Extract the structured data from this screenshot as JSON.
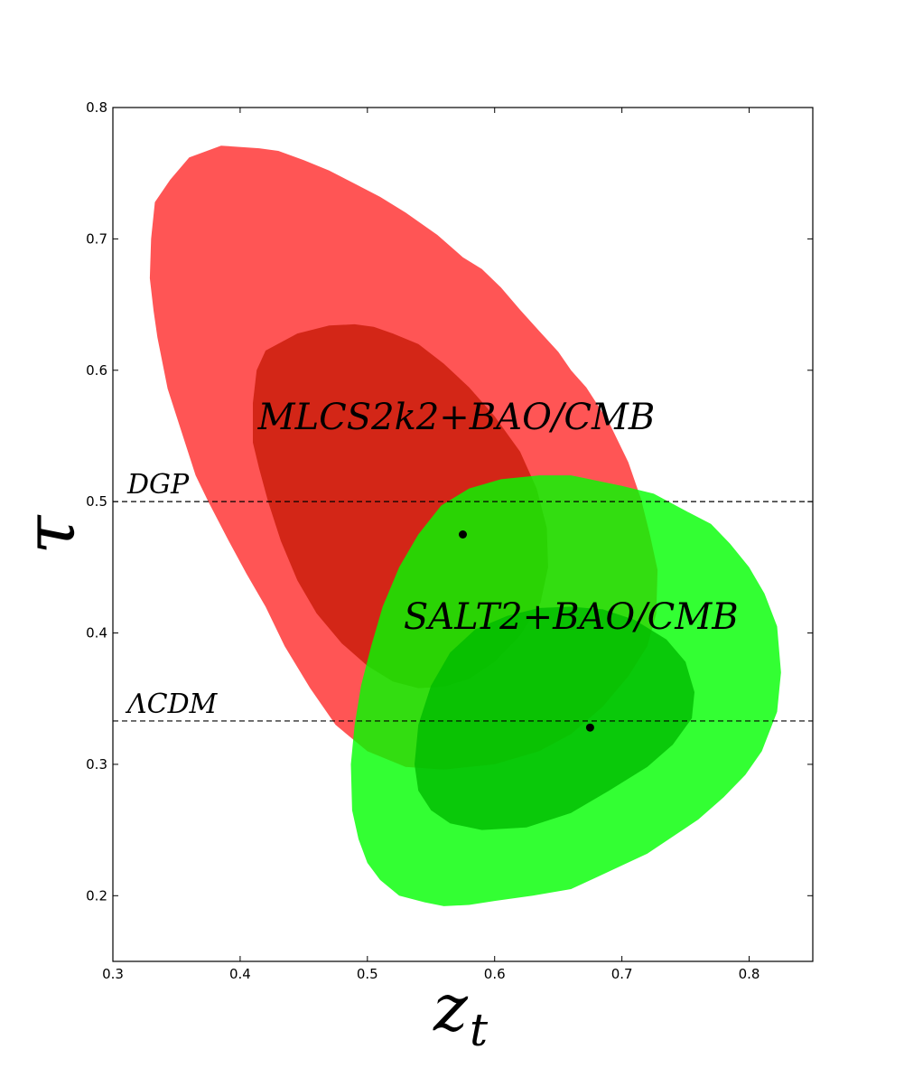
{
  "chart_data": {
    "type": "contour",
    "xlabel": "z",
    "xlabel_sub": "t",
    "ylabel": "τ",
    "xlim": [
      0.3,
      0.85
    ],
    "ylim": [
      0.15,
      0.8
    ],
    "x_ticks": [
      "0.3",
      "0.4",
      "0.5",
      "0.6",
      "0.7",
      "0.8"
    ],
    "y_ticks": [
      "0.2",
      "0.3",
      "0.4",
      "0.5",
      "0.6",
      "0.7",
      "0.8"
    ],
    "grid": false,
    "reference_lines": [
      {
        "label": "DGP",
        "y": 0.5,
        "style": "dashed"
      },
      {
        "label": "ΛCDM",
        "y": 0.333,
        "style": "dashed"
      }
    ],
    "series": [
      {
        "name": "MLCS2k2+BAO/CMB",
        "best_fit": {
          "x": 0.575,
          "y": 0.475
        },
        "label_pos": {
          "x": 0.57,
          "y": 0.555
        },
        "colors": {
          "outer": "#ff2a2a",
          "inner": "#c81a08"
        },
        "contour_outer": [
          [
            0.385,
            0.771
          ],
          [
            0.415,
            0.769
          ],
          [
            0.43,
            0.767
          ],
          [
            0.45,
            0.76
          ],
          [
            0.47,
            0.752
          ],
          [
            0.49,
            0.742
          ],
          [
            0.51,
            0.732
          ],
          [
            0.53,
            0.72
          ],
          [
            0.555,
            0.703
          ],
          [
            0.575,
            0.686
          ],
          [
            0.59,
            0.677
          ],
          [
            0.605,
            0.663
          ],
          [
            0.62,
            0.646
          ],
          [
            0.635,
            0.63
          ],
          [
            0.65,
            0.614
          ],
          [
            0.66,
            0.6
          ],
          [
            0.672,
            0.587
          ],
          [
            0.69,
            0.56
          ],
          [
            0.705,
            0.53
          ],
          [
            0.715,
            0.502
          ],
          [
            0.722,
            0.475
          ],
          [
            0.728,
            0.448
          ],
          [
            0.727,
            0.415
          ],
          [
            0.72,
            0.39
          ],
          [
            0.705,
            0.367
          ],
          [
            0.685,
            0.344
          ],
          [
            0.66,
            0.323
          ],
          [
            0.635,
            0.31
          ],
          [
            0.6,
            0.3
          ],
          [
            0.56,
            0.296
          ],
          [
            0.53,
            0.298
          ],
          [
            0.5,
            0.31
          ],
          [
            0.475,
            0.33
          ],
          [
            0.455,
            0.358
          ],
          [
            0.435,
            0.39
          ],
          [
            0.42,
            0.42
          ],
          [
            0.405,
            0.445
          ],
          [
            0.39,
            0.472
          ],
          [
            0.375,
            0.5
          ],
          [
            0.365,
            0.52
          ],
          [
            0.355,
            0.55
          ],
          [
            0.343,
            0.586
          ],
          [
            0.335,
            0.625
          ],
          [
            0.332,
            0.645
          ],
          [
            0.329,
            0.67
          ],
          [
            0.33,
            0.7
          ],
          [
            0.333,
            0.728
          ],
          [
            0.345,
            0.745
          ],
          [
            0.36,
            0.762
          ]
        ],
        "contour_inner": [
          [
            0.49,
            0.635
          ],
          [
            0.505,
            0.633
          ],
          [
            0.52,
            0.628
          ],
          [
            0.54,
            0.62
          ],
          [
            0.56,
            0.605
          ],
          [
            0.58,
            0.587
          ],
          [
            0.6,
            0.565
          ],
          [
            0.62,
            0.538
          ],
          [
            0.633,
            0.51
          ],
          [
            0.641,
            0.48
          ],
          [
            0.642,
            0.45
          ],
          [
            0.636,
            0.423
          ],
          [
            0.62,
            0.398
          ],
          [
            0.6,
            0.378
          ],
          [
            0.58,
            0.365
          ],
          [
            0.56,
            0.359
          ],
          [
            0.54,
            0.358
          ],
          [
            0.52,
            0.363
          ],
          [
            0.5,
            0.375
          ],
          [
            0.48,
            0.392
          ],
          [
            0.46,
            0.415
          ],
          [
            0.445,
            0.44
          ],
          [
            0.432,
            0.47
          ],
          [
            0.422,
            0.5
          ],
          [
            0.415,
            0.525
          ],
          [
            0.41,
            0.545
          ],
          [
            0.41,
            0.575
          ],
          [
            0.413,
            0.6
          ],
          [
            0.42,
            0.615
          ],
          [
            0.445,
            0.628
          ],
          [
            0.47,
            0.634
          ]
        ]
      },
      {
        "name": "SALT2+BAO/CMB",
        "best_fit": {
          "x": 0.675,
          "y": 0.328
        },
        "label_pos": {
          "x": 0.66,
          "y": 0.403
        },
        "colors": {
          "outer": "#00ff00",
          "inner": "#00bb00"
        },
        "contour_outer": [
          [
            0.66,
            0.52
          ],
          [
            0.7,
            0.512
          ],
          [
            0.725,
            0.506
          ],
          [
            0.75,
            0.493
          ],
          [
            0.77,
            0.483
          ],
          [
            0.785,
            0.468
          ],
          [
            0.8,
            0.45
          ],
          [
            0.812,
            0.43
          ],
          [
            0.822,
            0.405
          ],
          [
            0.825,
            0.37
          ],
          [
            0.822,
            0.34
          ],
          [
            0.81,
            0.31
          ],
          [
            0.797,
            0.292
          ],
          [
            0.78,
            0.275
          ],
          [
            0.76,
            0.258
          ],
          [
            0.74,
            0.245
          ],
          [
            0.72,
            0.232
          ],
          [
            0.7,
            0.223
          ],
          [
            0.68,
            0.214
          ],
          [
            0.66,
            0.205
          ],
          [
            0.63,
            0.2
          ],
          [
            0.6,
            0.196
          ],
          [
            0.58,
            0.193
          ],
          [
            0.56,
            0.192
          ],
          [
            0.545,
            0.195
          ],
          [
            0.525,
            0.2
          ],
          [
            0.51,
            0.212
          ],
          [
            0.5,
            0.225
          ],
          [
            0.493,
            0.243
          ],
          [
            0.488,
            0.265
          ],
          [
            0.487,
            0.3
          ],
          [
            0.49,
            0.33
          ],
          [
            0.495,
            0.36
          ],
          [
            0.503,
            0.39
          ],
          [
            0.512,
            0.42
          ],
          [
            0.525,
            0.45
          ],
          [
            0.54,
            0.475
          ],
          [
            0.558,
            0.497
          ],
          [
            0.58,
            0.51
          ],
          [
            0.605,
            0.517
          ],
          [
            0.635,
            0.52
          ]
        ],
        "contour_inner": [
          [
            0.66,
            0.42
          ],
          [
            0.685,
            0.418
          ],
          [
            0.71,
            0.41
          ],
          [
            0.735,
            0.395
          ],
          [
            0.75,
            0.378
          ],
          [
            0.757,
            0.355
          ],
          [
            0.755,
            0.335
          ],
          [
            0.74,
            0.315
          ],
          [
            0.72,
            0.298
          ],
          [
            0.69,
            0.28
          ],
          [
            0.66,
            0.263
          ],
          [
            0.625,
            0.252
          ],
          [
            0.59,
            0.25
          ],
          [
            0.565,
            0.255
          ],
          [
            0.55,
            0.265
          ],
          [
            0.54,
            0.28
          ],
          [
            0.537,
            0.3
          ],
          [
            0.54,
            0.33
          ],
          [
            0.55,
            0.36
          ],
          [
            0.565,
            0.385
          ],
          [
            0.585,
            0.403
          ],
          [
            0.61,
            0.413
          ],
          [
            0.635,
            0.419
          ]
        ]
      }
    ]
  }
}
